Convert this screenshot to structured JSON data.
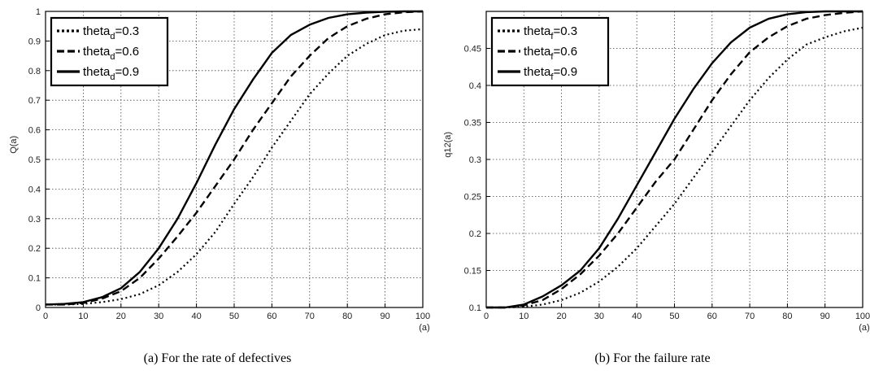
{
  "chart_data": [
    {
      "type": "line",
      "ylabel": "Q(a)",
      "xlabel": "(a)",
      "xlim": [
        0,
        100
      ],
      "ylim": [
        0,
        1
      ],
      "xticks": [
        0,
        10,
        20,
        30,
        40,
        50,
        60,
        70,
        80,
        90,
        100
      ],
      "yticks": [
        0,
        0.1,
        0.2,
        0.3,
        0.4,
        0.5,
        0.6,
        0.7,
        0.8,
        0.9,
        1
      ],
      "grid": true,
      "legend_position": "top-left",
      "series": [
        {
          "name": "theta_d=0.3",
          "label_main": "theta",
          "label_sub": "d",
          "label_tail": "=0.3",
          "style": "dotted",
          "x": [
            0,
            5,
            10,
            15,
            20,
            25,
            30,
            35,
            40,
            45,
            50,
            55,
            60,
            65,
            70,
            75,
            80,
            85,
            90,
            95,
            100
          ],
          "y": [
            0.01,
            0.01,
            0.012,
            0.018,
            0.028,
            0.045,
            0.075,
            0.12,
            0.18,
            0.255,
            0.35,
            0.44,
            0.54,
            0.63,
            0.72,
            0.79,
            0.85,
            0.89,
            0.92,
            0.935,
            0.94
          ]
        },
        {
          "name": "theta_d=0.6",
          "label_main": "theta",
          "label_sub": "d",
          "label_tail": "=0.6",
          "style": "dashed",
          "x": [
            0,
            5,
            10,
            15,
            20,
            25,
            30,
            35,
            40,
            45,
            50,
            55,
            60,
            65,
            70,
            75,
            80,
            85,
            90,
            95,
            100
          ],
          "y": [
            0.01,
            0.01,
            0.015,
            0.03,
            0.055,
            0.1,
            0.165,
            0.24,
            0.32,
            0.41,
            0.5,
            0.6,
            0.69,
            0.78,
            0.85,
            0.91,
            0.95,
            0.975,
            0.99,
            0.997,
            1.0
          ]
        },
        {
          "name": "theta_d=0.9",
          "label_main": "theta",
          "label_sub": "d",
          "label_tail": "=0.9",
          "style": "solid",
          "x": [
            0,
            5,
            10,
            15,
            20,
            25,
            30,
            35,
            40,
            45,
            50,
            55,
            60,
            65,
            70,
            75,
            80,
            85,
            90,
            95,
            100
          ],
          "y": [
            0.01,
            0.012,
            0.018,
            0.035,
            0.065,
            0.12,
            0.2,
            0.3,
            0.42,
            0.55,
            0.67,
            0.77,
            0.86,
            0.92,
            0.955,
            0.978,
            0.99,
            0.996,
            0.999,
            1.0,
            1.0
          ]
        }
      ],
      "caption": "(a) For the rate of defectives"
    },
    {
      "type": "line",
      "ylabel": "q12(a)",
      "xlabel": "(a)",
      "xlim": [
        0,
        100
      ],
      "ylim": [
        0.1,
        0.5
      ],
      "xticks": [
        0,
        10,
        20,
        30,
        40,
        50,
        60,
        70,
        80,
        90,
        100
      ],
      "yticks": [
        0.1,
        0.15,
        0.2,
        0.25,
        0.3,
        0.35,
        0.4,
        0.45
      ],
      "grid": true,
      "legend_position": "top-left",
      "series": [
        {
          "name": "theta_f=0.3",
          "label_main": "theta",
          "label_sub": "f",
          "label_tail": "=0.3",
          "style": "dotted",
          "x": [
            0,
            5,
            10,
            15,
            20,
            25,
            30,
            35,
            40,
            45,
            50,
            55,
            60,
            65,
            70,
            75,
            80,
            85,
            90,
            95,
            100
          ],
          "y": [
            0.1,
            0.1,
            0.101,
            0.104,
            0.11,
            0.12,
            0.135,
            0.155,
            0.18,
            0.21,
            0.24,
            0.275,
            0.31,
            0.345,
            0.38,
            0.41,
            0.435,
            0.455,
            0.465,
            0.473,
            0.478
          ]
        },
        {
          "name": "theta_f=0.6",
          "label_main": "theta",
          "label_sub": "f",
          "label_tail": "=0.6",
          "style": "dashed",
          "x": [
            0,
            5,
            10,
            15,
            20,
            25,
            30,
            35,
            40,
            45,
            50,
            55,
            60,
            65,
            70,
            75,
            80,
            85,
            90,
            95,
            100
          ],
          "y": [
            0.1,
            0.1,
            0.103,
            0.11,
            0.125,
            0.145,
            0.17,
            0.2,
            0.235,
            0.27,
            0.3,
            0.34,
            0.38,
            0.415,
            0.445,
            0.465,
            0.48,
            0.49,
            0.495,
            0.498,
            0.5
          ]
        },
        {
          "name": "theta_f=0.9",
          "label_main": "theta",
          "label_sub": "f",
          "label_tail": "=0.9",
          "style": "solid",
          "x": [
            0,
            5,
            10,
            15,
            20,
            25,
            30,
            35,
            40,
            45,
            50,
            55,
            60,
            65,
            70,
            75,
            80,
            85,
            90,
            95,
            100
          ],
          "y": [
            0.1,
            0.1,
            0.104,
            0.115,
            0.13,
            0.15,
            0.18,
            0.22,
            0.265,
            0.31,
            0.355,
            0.395,
            0.43,
            0.458,
            0.478,
            0.49,
            0.496,
            0.499,
            0.5,
            0.5,
            0.5
          ]
        }
      ],
      "caption": "(b) For the failure rate"
    }
  ]
}
